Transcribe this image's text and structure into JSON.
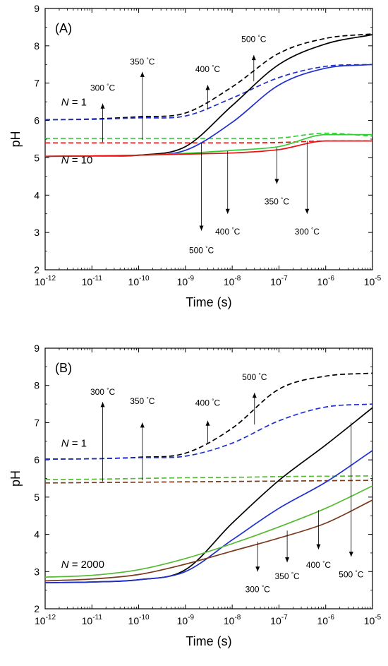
{
  "chart_data": [
    {
      "type": "line",
      "panel_label": "(A)",
      "xlabel": "Time (s)",
      "ylabel": "pH",
      "x_scale": "log",
      "xlim": [
        1e-12,
        1e-05
      ],
      "ylim": [
        2,
        9
      ],
      "x_ticks": [
        "10^-12",
        "10^-11",
        "10^-10",
        "10^-9",
        "10^-8",
        "10^-7",
        "10^-6",
        "10^-5"
      ],
      "y_ticks": [
        2,
        3,
        4,
        5,
        6,
        7,
        8,
        9
      ],
      "grid": false,
      "x": [
        1e-12,
        1e-11,
        1e-10,
        1e-09,
        1e-08,
        1e-07,
        1e-06,
        1e-05
      ],
      "series": [
        {
          "style": "dashed",
          "color": "#000000",
          "values": [
            6.02,
            6.04,
            6.1,
            6.2,
            6.9,
            7.8,
            8.2,
            8.32
          ]
        },
        {
          "style": "dashed",
          "color": "#1f2fd0",
          "values": [
            6.02,
            6.03,
            6.07,
            6.12,
            6.6,
            7.15,
            7.45,
            7.5
          ]
        },
        {
          "style": "dashed",
          "color": "#33cc33",
          "values": [
            5.52,
            5.52,
            5.52,
            5.52,
            5.52,
            5.53,
            5.66,
            5.58
          ]
        },
        {
          "style": "dashed",
          "color": "#ee1111",
          "values": [
            5.4,
            5.4,
            5.4,
            5.4,
            5.4,
            5.41,
            5.45,
            5.45
          ]
        },
        {
          "style": "solid",
          "color": "#000000",
          "values": [
            5.04,
            5.05,
            5.07,
            5.3,
            6.4,
            7.5,
            8.05,
            8.3
          ]
        },
        {
          "style": "solid",
          "color": "#1f2fd0",
          "values": [
            5.04,
            5.05,
            5.07,
            5.2,
            5.95,
            6.95,
            7.4,
            7.5
          ]
        },
        {
          "style": "solid",
          "color": "#33cc33",
          "values": [
            5.04,
            5.05,
            5.07,
            5.12,
            5.2,
            5.3,
            5.62,
            5.62
          ]
        },
        {
          "style": "solid",
          "color": "#ee1111",
          "values": [
            5.04,
            5.05,
            5.07,
            5.1,
            5.13,
            5.22,
            5.45,
            5.45
          ]
        }
      ],
      "annotations": [
        {
          "text": "300 °C",
          "x": 1.7e-11,
          "y_from": 5.42,
          "y_to": 6.45,
          "dir": "up",
          "label_y": 6.8
        },
        {
          "text": "350 °C",
          "x": 1.2e-10,
          "y_from": 5.48,
          "y_to": 7.3,
          "dir": "up",
          "label_y": 7.5
        },
        {
          "text": "400 °C",
          "x": 3e-09,
          "y_from": 6.3,
          "y_to": 6.95,
          "dir": "up",
          "label_y": 7.3
        },
        {
          "text": "500 °C",
          "x": 2.9e-08,
          "y_from": 7.05,
          "y_to": 7.75,
          "dir": "up",
          "label_y": 8.1
        },
        {
          "text": "500 °C",
          "x": 2.2e-09,
          "y_from": 5.4,
          "y_to": 3.05,
          "dir": "down",
          "label_y": 2.6
        },
        {
          "text": "400 °C",
          "x": 8e-09,
          "y_from": 5.18,
          "y_to": 3.5,
          "dir": "down",
          "label_y": 3.1
        },
        {
          "text": "350 °C",
          "x": 9e-08,
          "y_from": 5.27,
          "y_to": 4.3,
          "dir": "down",
          "label_y": 3.9
        },
        {
          "text": "300 °C",
          "x": 4e-07,
          "y_from": 5.45,
          "y_to": 3.5,
          "dir": "down",
          "label_y": 3.1
        }
      ],
      "labels": [
        {
          "text": "N = 1",
          "x": 2.2e-12,
          "y": 6.4
        },
        {
          "text": "N = 10",
          "x": 2.2e-12,
          "y": 4.85
        }
      ]
    },
    {
      "type": "line",
      "panel_label": "(B)",
      "xlabel": "Time (s)",
      "ylabel": "pH",
      "x_scale": "log",
      "xlim": [
        1e-12,
        1e-05
      ],
      "ylim": [
        2,
        9
      ],
      "x_ticks": [
        "10^-12",
        "10^-11",
        "10^-10",
        "10^-9",
        "10^-8",
        "10^-7",
        "10^-6",
        "10^-5"
      ],
      "y_ticks": [
        2,
        3,
        4,
        5,
        6,
        7,
        8,
        9
      ],
      "grid": false,
      "x": [
        1e-12,
        1e-11,
        1e-10,
        1e-09,
        1e-08,
        1e-07,
        1e-06,
        1e-05
      ],
      "series": [
        {
          "style": "dashed",
          "color": "#000000",
          "values": [
            6.02,
            6.03,
            6.07,
            6.18,
            6.85,
            7.9,
            8.25,
            8.33
          ]
        },
        {
          "style": "dashed",
          "color": "#1f2fd0",
          "values": [
            6.02,
            6.03,
            6.06,
            6.1,
            6.45,
            7.05,
            7.42,
            7.5
          ]
        },
        {
          "style": "dashed",
          "color": "#55bb33",
          "values": [
            5.47,
            5.48,
            5.5,
            5.52,
            5.53,
            5.55,
            5.56,
            5.57
          ]
        },
        {
          "style": "dashed",
          "color": "#7a3b1e",
          "values": [
            5.38,
            5.39,
            5.4,
            5.41,
            5.42,
            5.43,
            5.44,
            5.45
          ]
        },
        {
          "style": "solid",
          "color": "#000000",
          "values": [
            2.7,
            2.72,
            2.78,
            3.05,
            4.3,
            5.45,
            6.4,
            7.4
          ]
        },
        {
          "style": "solid",
          "color": "#1f2fd0",
          "values": [
            2.7,
            2.72,
            2.78,
            3.0,
            3.85,
            4.7,
            5.4,
            6.25
          ]
        },
        {
          "style": "solid",
          "color": "#55bb33",
          "values": [
            2.85,
            2.9,
            3.05,
            3.35,
            3.75,
            4.2,
            4.7,
            5.3
          ]
        },
        {
          "style": "solid",
          "color": "#7a3b1e",
          "values": [
            2.75,
            2.8,
            2.92,
            3.2,
            3.55,
            3.9,
            4.3,
            4.92
          ]
        }
      ],
      "annotations": [
        {
          "text": "300 °C",
          "x": 1.7e-11,
          "y_from": 5.42,
          "y_to": 7.55,
          "dir": "up",
          "label_y": 7.75
        },
        {
          "text": "350 °C",
          "x": 1.2e-10,
          "y_from": 5.45,
          "y_to": 7.0,
          "dir": "up",
          "label_y": 7.5
        },
        {
          "text": "400 °C",
          "x": 3e-09,
          "y_from": 6.45,
          "y_to": 7.05,
          "dir": "up",
          "label_y": 7.45
        },
        {
          "text": "500 °C",
          "x": 3e-08,
          "y_from": 6.95,
          "y_to": 7.8,
          "dir": "up",
          "label_y": 8.15
        },
        {
          "text": "300 °C",
          "x": 3.5e-08,
          "y_from": 3.8,
          "y_to": 3.0,
          "dir": "down",
          "label_y": 2.6
        },
        {
          "text": "350 °C",
          "x": 1.5e-07,
          "y_from": 4.1,
          "y_to": 3.25,
          "dir": "down",
          "label_y": 2.95
        },
        {
          "text": "400 °C",
          "x": 7e-07,
          "y_from": 4.65,
          "y_to": 3.6,
          "dir": "down",
          "label_y": 3.25
        },
        {
          "text": "500 °C",
          "x": 3.5e-06,
          "y_from": 7.0,
          "y_to": 3.4,
          "dir": "down",
          "label_y": 3.0
        }
      ],
      "labels": [
        {
          "text": "N = 1",
          "x": 2.2e-12,
          "y": 6.35
        },
        {
          "text": "N = 2000",
          "x": 2.2e-12,
          "y": 3.1
        }
      ]
    }
  ]
}
